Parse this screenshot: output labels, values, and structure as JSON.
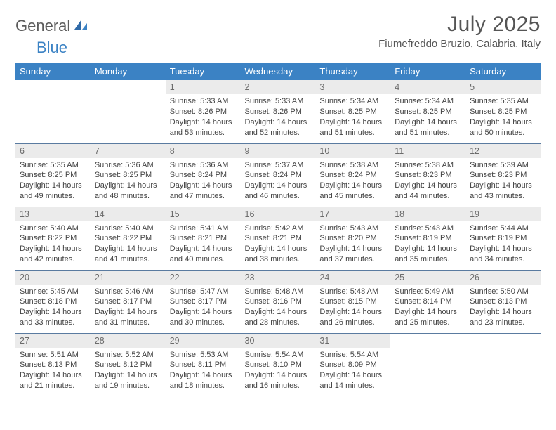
{
  "brand": {
    "part1": "General",
    "part2": "Blue"
  },
  "title": "July 2025",
  "location": "Fiumefreddo Bruzio, Calabria, Italy",
  "colors": {
    "accent": "#3b82c4",
    "header_text": "#ffffff",
    "daynum_bg": "#ebebeb",
    "daynum_text": "#6b6b6b",
    "body_text": "#444444",
    "rule": "#5a7ba0",
    "background": "#ffffff",
    "logo_gray": "#5c5c5c"
  },
  "weekdays": [
    "Sunday",
    "Monday",
    "Tuesday",
    "Wednesday",
    "Thursday",
    "Friday",
    "Saturday"
  ],
  "weeks": [
    [
      null,
      null,
      {
        "n": "1",
        "sr": "5:33 AM",
        "ss": "8:26 PM",
        "dl": "14 hours and 53 minutes."
      },
      {
        "n": "2",
        "sr": "5:33 AM",
        "ss": "8:26 PM",
        "dl": "14 hours and 52 minutes."
      },
      {
        "n": "3",
        "sr": "5:34 AM",
        "ss": "8:25 PM",
        "dl": "14 hours and 51 minutes."
      },
      {
        "n": "4",
        "sr": "5:34 AM",
        "ss": "8:25 PM",
        "dl": "14 hours and 51 minutes."
      },
      {
        "n": "5",
        "sr": "5:35 AM",
        "ss": "8:25 PM",
        "dl": "14 hours and 50 minutes."
      }
    ],
    [
      {
        "n": "6",
        "sr": "5:35 AM",
        "ss": "8:25 PM",
        "dl": "14 hours and 49 minutes."
      },
      {
        "n": "7",
        "sr": "5:36 AM",
        "ss": "8:25 PM",
        "dl": "14 hours and 48 minutes."
      },
      {
        "n": "8",
        "sr": "5:36 AM",
        "ss": "8:24 PM",
        "dl": "14 hours and 47 minutes."
      },
      {
        "n": "9",
        "sr": "5:37 AM",
        "ss": "8:24 PM",
        "dl": "14 hours and 46 minutes."
      },
      {
        "n": "10",
        "sr": "5:38 AM",
        "ss": "8:24 PM",
        "dl": "14 hours and 45 minutes."
      },
      {
        "n": "11",
        "sr": "5:38 AM",
        "ss": "8:23 PM",
        "dl": "14 hours and 44 minutes."
      },
      {
        "n": "12",
        "sr": "5:39 AM",
        "ss": "8:23 PM",
        "dl": "14 hours and 43 minutes."
      }
    ],
    [
      {
        "n": "13",
        "sr": "5:40 AM",
        "ss": "8:22 PM",
        "dl": "14 hours and 42 minutes."
      },
      {
        "n": "14",
        "sr": "5:40 AM",
        "ss": "8:22 PM",
        "dl": "14 hours and 41 minutes."
      },
      {
        "n": "15",
        "sr": "5:41 AM",
        "ss": "8:21 PM",
        "dl": "14 hours and 40 minutes."
      },
      {
        "n": "16",
        "sr": "5:42 AM",
        "ss": "8:21 PM",
        "dl": "14 hours and 38 minutes."
      },
      {
        "n": "17",
        "sr": "5:43 AM",
        "ss": "8:20 PM",
        "dl": "14 hours and 37 minutes."
      },
      {
        "n": "18",
        "sr": "5:43 AM",
        "ss": "8:19 PM",
        "dl": "14 hours and 35 minutes."
      },
      {
        "n": "19",
        "sr": "5:44 AM",
        "ss": "8:19 PM",
        "dl": "14 hours and 34 minutes."
      }
    ],
    [
      {
        "n": "20",
        "sr": "5:45 AM",
        "ss": "8:18 PM",
        "dl": "14 hours and 33 minutes."
      },
      {
        "n": "21",
        "sr": "5:46 AM",
        "ss": "8:17 PM",
        "dl": "14 hours and 31 minutes."
      },
      {
        "n": "22",
        "sr": "5:47 AM",
        "ss": "8:17 PM",
        "dl": "14 hours and 30 minutes."
      },
      {
        "n": "23",
        "sr": "5:48 AM",
        "ss": "8:16 PM",
        "dl": "14 hours and 28 minutes."
      },
      {
        "n": "24",
        "sr": "5:48 AM",
        "ss": "8:15 PM",
        "dl": "14 hours and 26 minutes."
      },
      {
        "n": "25",
        "sr": "5:49 AM",
        "ss": "8:14 PM",
        "dl": "14 hours and 25 minutes."
      },
      {
        "n": "26",
        "sr": "5:50 AM",
        "ss": "8:13 PM",
        "dl": "14 hours and 23 minutes."
      }
    ],
    [
      {
        "n": "27",
        "sr": "5:51 AM",
        "ss": "8:13 PM",
        "dl": "14 hours and 21 minutes."
      },
      {
        "n": "28",
        "sr": "5:52 AM",
        "ss": "8:12 PM",
        "dl": "14 hours and 19 minutes."
      },
      {
        "n": "29",
        "sr": "5:53 AM",
        "ss": "8:11 PM",
        "dl": "14 hours and 18 minutes."
      },
      {
        "n": "30",
        "sr": "5:54 AM",
        "ss": "8:10 PM",
        "dl": "14 hours and 16 minutes."
      },
      {
        "n": "31",
        "sr": "5:54 AM",
        "ss": "8:09 PM",
        "dl": "14 hours and 14 minutes."
      },
      null,
      null
    ]
  ],
  "labels": {
    "sunrise": "Sunrise:",
    "sunset": "Sunset:",
    "daylight": "Daylight:"
  }
}
